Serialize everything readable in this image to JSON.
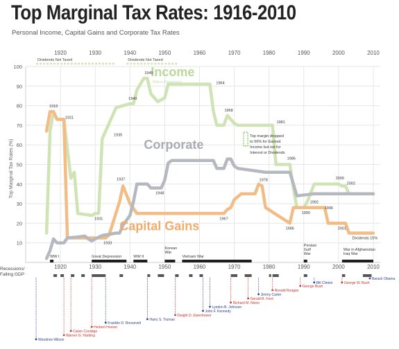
{
  "title": "Top Marginal Tax Rates: 1916-2010",
  "subtitle": "Personal Income, Capital Gains and Corporate Tax Rates",
  "colors": {
    "income": "#cfe3b4",
    "income_label": "#bcd79b",
    "corporate": "#b6b8c0",
    "corporate_label": "#a9abb3",
    "capital_gains": "#f2bc86",
    "capital_gains_label": "#f0ac6b",
    "democrat": "#2a3f8f",
    "republican": "#c8332c",
    "war_bar": "#1f1f1f",
    "recession": "#555555"
  },
  "chart_data": {
    "type": "line",
    "ylabel": "Top Marginal Tax Rates (%)",
    "xlim": [
      1910,
      2012
    ],
    "ylim": [
      0,
      100
    ],
    "x_ticks": [
      1920,
      1930,
      1940,
      1950,
      1960,
      1970,
      1980,
      1990,
      2000,
      2010
    ],
    "y_ticks": [
      10,
      20,
      30,
      40,
      50,
      60,
      70,
      80,
      90,
      100
    ],
    "series": [
      {
        "name": "Income",
        "subtitle": "Wilson Plagiarizing",
        "points": [
          [
            1916,
            15
          ],
          [
            1917,
            67
          ],
          [
            1918,
            77
          ],
          [
            1919,
            73
          ],
          [
            1921,
            73
          ],
          [
            1922,
            58
          ],
          [
            1923,
            43
          ],
          [
            1924,
            46
          ],
          [
            1925,
            25
          ],
          [
            1929,
            24
          ],
          [
            1930,
            25
          ],
          [
            1931,
            25
          ],
          [
            1932,
            63
          ],
          [
            1936,
            79
          ],
          [
            1940,
            81
          ],
          [
            1941,
            81
          ],
          [
            1942,
            88
          ],
          [
            1944,
            94
          ],
          [
            1945,
            94
          ],
          [
            1946,
            86
          ],
          [
            1948,
            82
          ],
          [
            1950,
            84
          ],
          [
            1951,
            91
          ],
          [
            1963,
            91
          ],
          [
            1964,
            77
          ],
          [
            1965,
            70
          ],
          [
            1967,
            70
          ],
          [
            1968,
            75
          ],
          [
            1970,
            71
          ],
          [
            1971,
            70
          ],
          [
            1981,
            70
          ],
          [
            1982,
            50
          ],
          [
            1986,
            50
          ],
          [
            1987,
            38
          ],
          [
            1988,
            28
          ],
          [
            1990,
            28
          ],
          [
            1991,
            31
          ],
          [
            1993,
            40
          ],
          [
            2000,
            40
          ],
          [
            2001,
            39
          ],
          [
            2002,
            39
          ],
          [
            2003,
            35
          ],
          [
            2010,
            35
          ]
        ]
      },
      {
        "name": "Corporate",
        "points": [
          [
            1916,
            2
          ],
          [
            1917,
            6
          ],
          [
            1918,
            12
          ],
          [
            1919,
            10
          ],
          [
            1921,
            10
          ],
          [
            1922,
            12.5
          ],
          [
            1925,
            13
          ],
          [
            1927,
            13.5
          ],
          [
            1928,
            12
          ],
          [
            1929,
            11
          ],
          [
            1930,
            12
          ],
          [
            1932,
            13.75
          ],
          [
            1936,
            15
          ],
          [
            1937,
            15
          ],
          [
            1938,
            19
          ],
          [
            1940,
            24
          ],
          [
            1941,
            31
          ],
          [
            1942,
            40
          ],
          [
            1945,
            40
          ],
          [
            1946,
            38
          ],
          [
            1949,
            38
          ],
          [
            1950,
            42
          ],
          [
            1951,
            50.75
          ],
          [
            1952,
            52
          ],
          [
            1964,
            52
          ],
          [
            1965,
            48
          ],
          [
            1967,
            48
          ],
          [
            1968,
            52.8
          ],
          [
            1969,
            52.8
          ],
          [
            1970,
            49.2
          ],
          [
            1971,
            48
          ],
          [
            1979,
            46
          ],
          [
            1986,
            46
          ],
          [
            1987,
            40
          ],
          [
            1988,
            34
          ],
          [
            1993,
            35
          ],
          [
            2010,
            35
          ]
        ]
      },
      {
        "name": "Capital Gains",
        "points": [
          [
            1916,
            67
          ],
          [
            1917,
            77
          ],
          [
            1918,
            77
          ],
          [
            1919,
            73
          ],
          [
            1921,
            73
          ],
          [
            1922,
            12.5
          ],
          [
            1933,
            12.5
          ],
          [
            1934,
            14
          ],
          [
            1937,
            31
          ],
          [
            1938,
            39
          ],
          [
            1940,
            30
          ],
          [
            1942,
            25
          ],
          [
            1967,
            25
          ],
          [
            1968,
            27
          ],
          [
            1969,
            28
          ],
          [
            1970,
            32
          ],
          [
            1972,
            35
          ],
          [
            1976,
            35
          ],
          [
            1977,
            40
          ],
          [
            1978,
            39
          ],
          [
            1979,
            28
          ],
          [
            1986,
            20
          ],
          [
            1987,
            28
          ],
          [
            1991,
            28
          ],
          [
            1996,
            28
          ],
          [
            1997,
            20
          ],
          [
            2001,
            20
          ],
          [
            2002,
            20
          ],
          [
            2003,
            15
          ],
          [
            2010,
            15
          ]
        ]
      }
    ],
    "series_labels": {
      "income": "Income",
      "income_sub": "Wilson Plagiarizing",
      "corporate": "Corporate",
      "capital_gains": "Capital Gains"
    },
    "top_annotations": [
      {
        "text": "Dividends Not Taxed",
        "x1": 1913,
        "x2": 1936
      },
      {
        "text": "Dividends Not Taxed",
        "x1": 1939,
        "x2": 1954
      }
    ],
    "annotations": [
      {
        "year": 1918,
        "y": 77,
        "label": "1918",
        "dy": -6
      },
      {
        "year": 1921,
        "y": 73,
        "label": "1921",
        "dx": 8,
        "dy": -1
      },
      {
        "year": 1931,
        "y": 25,
        "label": "1931",
        "dy": 9
      },
      {
        "year": 1933,
        "y": 12.5,
        "label": "1933",
        "dx": 3,
        "dy": 9
      },
      {
        "year": 1935,
        "y": 63,
        "label": "1935",
        "dx": 8,
        "dy": -4
      },
      {
        "year": 1937,
        "y": 39,
        "label": "1937",
        "dx": 2,
        "dy": -8
      },
      {
        "year": 1940,
        "y": 81,
        "label": "1940",
        "dx": 4,
        "dy": -6
      },
      {
        "year": 1945,
        "y": 94,
        "label": "1945",
        "dx": 2,
        "dy": -6
      },
      {
        "year": 1948,
        "y": 38,
        "label": "1948",
        "dx": 3,
        "dy": 9
      },
      {
        "year": 1964,
        "y": 91,
        "label": "1964",
        "dx": 10,
        "dy": 0
      },
      {
        "year": 1968,
        "y": 75,
        "label": "1968",
        "dx": 2,
        "dy": -6
      },
      {
        "year": 1967,
        "y": 25,
        "label": "1967",
        "dy": 9
      },
      {
        "year": 1978,
        "y": 39,
        "label": "1978",
        "dx": 2,
        "dy": -7
      },
      {
        "year": 1981,
        "y": 70,
        "label": "1981",
        "dx": 12,
        "dy": -3
      },
      {
        "year": 1986,
        "y": 50,
        "label": "1986",
        "dx": 2,
        "dy": -7
      },
      {
        "year": 1986,
        "y": 20,
        "label": "1986",
        "dy": 9
      },
      {
        "year": 1990,
        "y": 28,
        "label": "1990",
        "dx": 3,
        "dy": 9
      },
      {
        "year": 1992,
        "y": 31,
        "label": "1992",
        "dx": 5,
        "dy": 2
      },
      {
        "year": 1996,
        "y": 28,
        "label": "1996",
        "dx": 6,
        "dy": 2
      },
      {
        "year": 2000,
        "y": 40,
        "label": "2000",
        "dx": 2,
        "dy": -7
      },
      {
        "year": 2002,
        "y": 39,
        "label": "2002",
        "dx": 8,
        "dy": -2
      },
      {
        "year": 2001,
        "y": 20,
        "label": "2001",
        "dy": 9
      },
      {
        "year": 2004,
        "y": 15,
        "label": "Dividends 15%",
        "dx": 18,
        "dy": 9
      }
    ],
    "note": {
      "lines": [
        "Top margin dropped",
        "to 50% for Earned",
        "Income but not for",
        "Interest or Dividends"
      ],
      "x": 1974.5,
      "y": 64
    },
    "wars": [
      {
        "name": "WW I",
        "start": 1917,
        "end": 1918
      },
      {
        "name": "Great Depression",
        "start": 1929,
        "end": 1939
      },
      {
        "name": "WW II",
        "start": 1941,
        "end": 1945
      },
      {
        "name": "Korean War",
        "start": 1950,
        "end": 1953
      },
      {
        "name": "Vietnam War",
        "start": 1955,
        "end": 1975
      },
      {
        "name": "Persian Gulf War",
        "start": 1990,
        "end": 1991
      },
      {
        "name": "War in Afghanistan Iraq War",
        "start": 2001,
        "end": 2010
      }
    ],
    "recession_label": "Recessions/ Falling GDP",
    "recessions": [
      [
        1918,
        1919
      ],
      [
        1920,
        1921
      ],
      [
        1923,
        1924
      ],
      [
        1926,
        1927
      ],
      [
        1929,
        1933
      ],
      [
        1937,
        1938
      ],
      [
        1945,
        1945.8
      ],
      [
        1948,
        1949.8
      ],
      [
        1953,
        1954
      ],
      [
        1957,
        1958
      ],
      [
        1960,
        1961
      ],
      [
        1969,
        1970.9
      ],
      [
        1973,
        1975
      ],
      [
        1980,
        1980.6
      ],
      [
        1981,
        1982.8
      ],
      [
        1990,
        1991
      ],
      [
        2001,
        2001.9
      ],
      [
        2007,
        2009.5
      ]
    ],
    "presidents": [
      {
        "name": "Woodrow Wilson",
        "year": 1913,
        "party": "D"
      },
      {
        "name": "Warren G. Harding",
        "year": 1921,
        "party": "R"
      },
      {
        "name": "Calvin Coolidge",
        "year": 1923,
        "party": "R"
      },
      {
        "name": "Herbert Hoover",
        "year": 1929,
        "party": "R"
      },
      {
        "name": "Franklin D. Roosevelt",
        "year": 1933,
        "party": "D"
      },
      {
        "name": "Harry S. Truman",
        "year": 1945,
        "party": "D"
      },
      {
        "name": "Dwight D. Eisenhower",
        "year": 1953,
        "party": "R"
      },
      {
        "name": "John F. Kennedy",
        "year": 1961,
        "party": "D"
      },
      {
        "name": "Lyndon B. Johnson",
        "year": 1963,
        "party": "D"
      },
      {
        "name": "Richard M. Nixon",
        "year": 1969,
        "party": "R"
      },
      {
        "name": "Gerald R. Ford",
        "year": 1974,
        "party": "R"
      },
      {
        "name": "Jimmy Carter",
        "year": 1977,
        "party": "D"
      },
      {
        "name": "Ronald Reagan",
        "year": 1981,
        "party": "R"
      },
      {
        "name": "George Bush",
        "year": 1989,
        "party": "R"
      },
      {
        "name": "Bill Clinton",
        "year": 1993,
        "party": "D"
      },
      {
        "name": "George W. Bush",
        "year": 2001,
        "party": "R"
      },
      {
        "name": "Barack Obama",
        "year": 2009,
        "party": "D"
      }
    ]
  }
}
